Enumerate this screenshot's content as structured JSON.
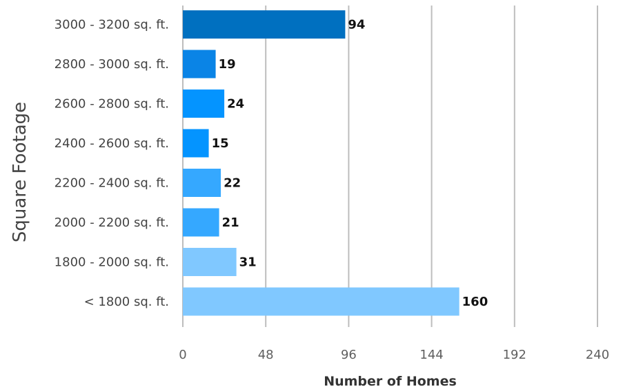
{
  "chart_data": {
    "type": "bar",
    "orientation": "horizontal",
    "categories": [
      "3000 - 3200 sq. ft.",
      "2800 - 3000 sq. ft.",
      "2600 - 2800 sq. ft.",
      "2400 - 2600 sq. ft.",
      "2200 - 2400 sq. ft.",
      "2000 - 2200 sq. ft.",
      "1800 - 2000 sq. ft.",
      "< 1800 sq. ft."
    ],
    "values": [
      94,
      19,
      24,
      15,
      22,
      21,
      31,
      160
    ],
    "colors": [
      "#0070C0",
      "#0A84E6",
      "#0494FF",
      "#0494FF",
      "#35A8FF",
      "#35A8FF",
      "#80C8FF",
      "#80C8FF"
    ],
    "title": "",
    "xlabel": "Number of Homes",
    "ylabel": "Square Footage",
    "xlim": [
      0,
      240
    ],
    "xticks": [
      0,
      48,
      96,
      144,
      192,
      240
    ],
    "grid": true,
    "data_labels": true
  }
}
